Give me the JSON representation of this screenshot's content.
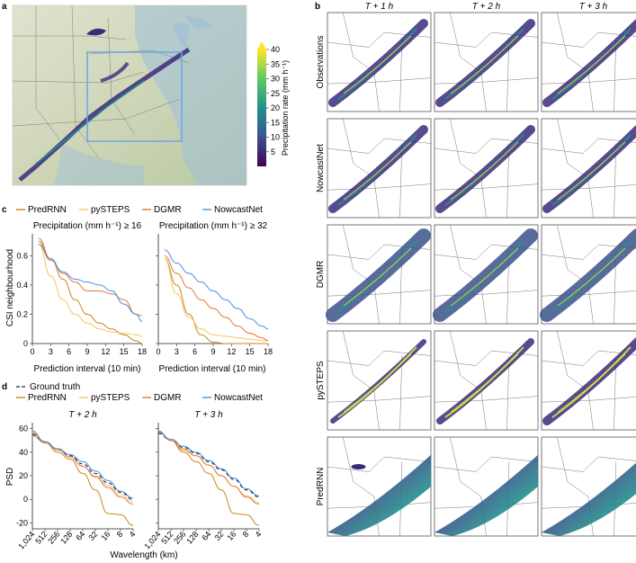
{
  "panel_labels": {
    "a": "a",
    "b": "b",
    "c": "c",
    "d": "d"
  },
  "colors": {
    "PredRNN": "#c8861a",
    "pySTEPS": "#f2c75c",
    "DGMR": "#e8753a",
    "NowcastNet": "#4a90d9",
    "Ground truth": "#1b2a55"
  },
  "colorbar": {
    "label": "Precipitation rate (mm h⁻¹)",
    "ticks": [
      "40",
      "35",
      "30",
      "25",
      "20",
      "15",
      "10",
      "5"
    ]
  },
  "grid": {
    "column_titles": [
      "T + 1 h",
      "T + 2 h",
      "T + 3 h"
    ],
    "row_labels": [
      "Observations",
      "NowcastNet",
      "DGMR",
      "pySTEPS",
      "PredRNN"
    ]
  },
  "panel_c": {
    "legend": [
      "PredRNN",
      "pySTEPS",
      "DGMR",
      "NowcastNet"
    ],
    "ylabel": "CSI neighbourhood",
    "xlabel": "Prediction interval (10 min)",
    "yticks": [
      "0",
      "0.2",
      "0.4",
      "0.6"
    ],
    "xticks": [
      "0",
      "3",
      "6",
      "9",
      "12",
      "15",
      "18"
    ]
  },
  "panel_d": {
    "legend_row1": "Ground truth",
    "legend": [
      "PredRNN",
      "pySTEPS",
      "DGMR",
      "NowcastNet"
    ],
    "ylabel": "PSD",
    "xlabel": "Wavelength (km)",
    "yticks": [
      "60",
      "40",
      "20",
      "0",
      "-20"
    ],
    "xticks": [
      "1,024",
      "512",
      "256",
      "128",
      "64",
      "32",
      "16",
      "8",
      "4"
    ]
  },
  "chart_data": [
    {
      "type": "line",
      "title": "Precipitation (mm h⁻¹) ≥ 16",
      "xlabel": "Prediction interval (10 min)",
      "ylabel": "CSI neighbourhood",
      "xlim": [
        0,
        18
      ],
      "ylim": [
        0,
        0.75
      ],
      "x": [
        1,
        3,
        5,
        7,
        9,
        11,
        13,
        15,
        17,
        18
      ],
      "series": [
        {
          "name": "PredRNN",
          "values": [
            0.7,
            0.58,
            0.44,
            0.3,
            0.2,
            0.14,
            0.1,
            0.06,
            0.02,
            0.0
          ]
        },
        {
          "name": "pySTEPS",
          "values": [
            0.68,
            0.46,
            0.3,
            0.2,
            0.14,
            0.1,
            0.08,
            0.07,
            0.06,
            0.05
          ]
        },
        {
          "name": "DGMR",
          "values": [
            0.72,
            0.58,
            0.48,
            0.42,
            0.36,
            0.36,
            0.34,
            0.3,
            0.2,
            0.19
          ]
        },
        {
          "name": "NowcastNet",
          "values": [
            0.68,
            0.57,
            0.49,
            0.44,
            0.42,
            0.4,
            0.36,
            0.27,
            0.2,
            0.15
          ]
        }
      ]
    },
    {
      "type": "line",
      "title": "Precipitation (mm h⁻¹) ≥ 32",
      "xlabel": "Prediction interval (10 min)",
      "ylabel": "CSI neighbourhood",
      "xlim": [
        0,
        18
      ],
      "ylim": [
        0,
        0.75
      ],
      "x": [
        1,
        3,
        5,
        7,
        9,
        11,
        13,
        15,
        17,
        18
      ],
      "series": [
        {
          "name": "PredRNN",
          "values": [
            0.58,
            0.4,
            0.2,
            0.06,
            0.01,
            0.0,
            0.0,
            0.0,
            0.0,
            0.0
          ]
        },
        {
          "name": "pySTEPS",
          "values": [
            0.58,
            0.34,
            0.18,
            0.1,
            0.06,
            0.05,
            0.04,
            0.03,
            0.02,
            0.02
          ]
        },
        {
          "name": "DGMR",
          "values": [
            0.6,
            0.48,
            0.38,
            0.3,
            0.24,
            0.18,
            0.12,
            0.07,
            0.04,
            0.02
          ]
        },
        {
          "name": "NowcastNet",
          "values": [
            0.64,
            0.55,
            0.48,
            0.42,
            0.36,
            0.3,
            0.24,
            0.17,
            0.12,
            0.1
          ]
        }
      ]
    },
    {
      "type": "line",
      "title": "T + 2 h",
      "xlabel": "Wavelength (km)",
      "ylabel": "PSD",
      "ylim": [
        -25,
        65
      ],
      "x": [
        "1,024",
        "512",
        "256",
        "128",
        "64",
        "32",
        "16",
        "8",
        "4"
      ],
      "series": [
        {
          "name": "Ground truth",
          "values": [
            55,
            48,
            42,
            37,
            30,
            22,
            14,
            6,
            0
          ]
        },
        {
          "name": "PredRNN",
          "values": [
            54,
            48,
            40,
            34,
            22,
            8,
            -12,
            -13,
            -22
          ]
        },
        {
          "name": "pySTEPS",
          "values": [
            57,
            49,
            42,
            36,
            28,
            20,
            12,
            4,
            -2
          ]
        },
        {
          "name": "DGMR",
          "values": [
            58,
            48,
            42,
            36,
            28,
            19,
            10,
            2,
            -4
          ]
        },
        {
          "name": "NowcastNet",
          "values": [
            56,
            49,
            43,
            38,
            32,
            24,
            16,
            7,
            1
          ]
        }
      ]
    },
    {
      "type": "line",
      "title": "T + 3 h",
      "xlabel": "Wavelength (km)",
      "ylabel": "PSD",
      "ylim": [
        -25,
        65
      ],
      "x": [
        "1,024",
        "512",
        "256",
        "128",
        "64",
        "32",
        "16",
        "8",
        "4"
      ],
      "series": [
        {
          "name": "Ground truth",
          "values": [
            56,
            50,
            44,
            39,
            32,
            25,
            17,
            8,
            2
          ]
        },
        {
          "name": "PredRNN",
          "values": [
            57,
            50,
            40,
            32,
            22,
            8,
            -12,
            -13,
            -22
          ]
        },
        {
          "name": "pySTEPS",
          "values": [
            58,
            50,
            43,
            37,
            29,
            20,
            11,
            3,
            -3
          ]
        },
        {
          "name": "DGMR",
          "values": [
            58,
            50,
            42,
            37,
            29,
            20,
            11,
            2,
            -4
          ]
        },
        {
          "name": "NowcastNet",
          "values": [
            57,
            51,
            45,
            40,
            33,
            26,
            18,
            9,
            3
          ]
        }
      ]
    }
  ]
}
